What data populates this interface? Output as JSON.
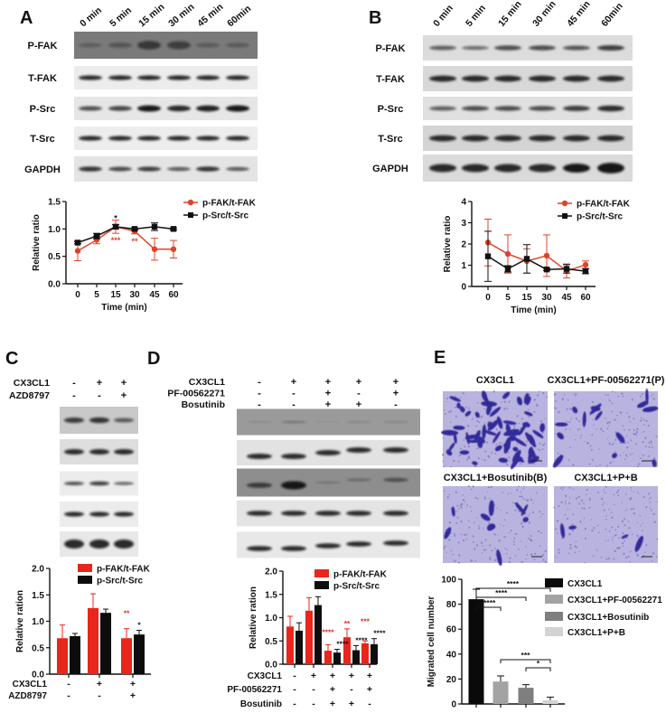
{
  "panel_a": {
    "label": "A",
    "lanes": [
      "0 min",
      "5 min",
      "15 min",
      "30 min",
      "45 min",
      "60min"
    ],
    "rows": [
      "P-FAK",
      "T-FAK",
      "P-Src",
      "T-Src",
      "GAPDH"
    ]
  },
  "panel_b": {
    "label": "B",
    "lanes": [
      "0 min",
      "5 min",
      "15 min",
      "30 min",
      "45 min",
      "60min"
    ],
    "rows": [
      "P-FAK",
      "T-FAK",
      "P-Src",
      "T-Src",
      "GAPDH"
    ]
  },
  "panel_c": {
    "label": "C",
    "conditions": [
      {
        "label": "CX3CL1",
        "values": [
          "-",
          "+",
          "+"
        ]
      },
      {
        "label": "AZD8797",
        "values": [
          "-",
          "-",
          "+"
        ]
      }
    ]
  },
  "panel_d": {
    "label": "D",
    "conditions": [
      {
        "label": "CX3CL1",
        "values": [
          "-",
          "+",
          "+",
          "+",
          "+"
        ]
      },
      {
        "label": "PF-00562271",
        "values": [
          "-",
          "-",
          "+",
          "-",
          "+"
        ]
      },
      {
        "label": "Bosutinib",
        "values": [
          "-",
          "-",
          "+",
          "+",
          "-"
        ]
      }
    ]
  },
  "panel_e": {
    "label": "E",
    "images": [
      "CX3CL1",
      "CX3CL1+PF-00562271(P)",
      "CX3CL1+Bosutinib(B)",
      "CX3CL1+P+B"
    ]
  },
  "chart_data": [
    {
      "type": "line",
      "categories": [
        "0",
        "5",
        "15",
        "30",
        "45",
        "60"
      ],
      "xlabel": "Time (min)",
      "ylabel": "Relative ratio",
      "ylim": [
        0,
        1.5
      ],
      "yticks": [
        "0.0",
        "0.5",
        "1.0",
        "1.5"
      ],
      "grid": false,
      "legend": "top-right",
      "series": [
        {
          "name": "p-FAK/t-FAK",
          "color": "#e0432b",
          "marker": "circle",
          "values": [
            0.6,
            0.8,
            1.04,
            0.96,
            0.63,
            0.63
          ],
          "errors": [
            0.18,
            0.07,
            0.12,
            0.05,
            0.2,
            0.16
          ],
          "annotations": [
            "",
            "",
            "***",
            "**",
            "",
            ""
          ]
        },
        {
          "name": "p-Src/t-Src",
          "color": "#111111",
          "marker": "square",
          "values": [
            0.75,
            0.87,
            1.04,
            1.0,
            1.04,
            1.0
          ],
          "errors": [
            0.02,
            0.05,
            0.04,
            0.02,
            0.07,
            0.02
          ],
          "annotations": [
            "",
            "",
            "*",
            "",
            "",
            ""
          ]
        }
      ]
    },
    {
      "type": "line",
      "categories": [
        "0",
        "5",
        "15",
        "30",
        "45",
        "60"
      ],
      "xlabel": "Time (min)",
      "ylabel": "Relative ratio",
      "ylim": [
        0,
        4
      ],
      "yticks": [
        "0",
        "1",
        "2",
        "3",
        "4"
      ],
      "grid": false,
      "legend": "top-right",
      "series": [
        {
          "name": "p-FAK/t-FAK",
          "color": "#e0432b",
          "marker": "circle",
          "values": [
            2.07,
            1.53,
            1.2,
            1.45,
            0.73,
            1.02
          ],
          "errors": [
            1.1,
            0.9,
            0.57,
            0.98,
            0.33,
            0.18
          ],
          "annotations": [
            "",
            "",
            "",
            "",
            "",
            ""
          ]
        },
        {
          "name": "p-Src/t-Src",
          "color": "#111111",
          "marker": "square",
          "values": [
            1.42,
            0.83,
            1.3,
            0.8,
            0.83,
            0.72
          ],
          "errors": [
            1.18,
            0.15,
            0.67,
            0.05,
            0.2,
            0.12
          ],
          "annotations": [
            "",
            "",
            "",
            "",
            "",
            ""
          ]
        }
      ]
    },
    {
      "type": "bar",
      "ylabel": "Relative ration",
      "ylim": [
        0,
        2
      ],
      "yticks": [
        "0.0",
        "0.5",
        "1.0",
        "1.5",
        "2.0"
      ],
      "legend": "top-right",
      "conditions": [
        {
          "label": "CX3CL1",
          "values": [
            "-",
            "+",
            "+"
          ]
        },
        {
          "label": "AZD8797",
          "values": [
            "-",
            "-",
            "+"
          ]
        }
      ],
      "series": [
        {
          "name": "p-FAK/t-FAK",
          "color": "#e8261c",
          "values": [
            0.68,
            1.25,
            0.68
          ],
          "errors": [
            0.25,
            0.27,
            0.18
          ],
          "annotations": [
            "",
            "",
            "**"
          ]
        },
        {
          "name": "p-Src/t-Src",
          "color": "#0d0d0d",
          "values": [
            0.72,
            1.16,
            0.75
          ],
          "errors": [
            0.05,
            0.07,
            0.08
          ],
          "annotations": [
            "",
            "",
            "*"
          ]
        }
      ]
    },
    {
      "type": "bar",
      "ylabel": "Relative ration",
      "ylim": [
        0,
        2
      ],
      "yticks": [
        "0.0",
        "0.5",
        "1.0",
        "1.5",
        "2.0"
      ],
      "legend": "top-right",
      "conditions": [
        {
          "label": "CX3CL1",
          "values": [
            "-",
            "+",
            "+",
            "+",
            "+"
          ]
        },
        {
          "label": "PF-00562271",
          "values": [
            "-",
            "-",
            "+",
            "-",
            "+"
          ]
        },
        {
          "label": "Bosutinib",
          "values": [
            "-",
            "-",
            "+",
            "+",
            "-"
          ]
        }
      ],
      "series": [
        {
          "name": "p-FAK/t-FAK",
          "color": "#e8261c",
          "values": [
            0.81,
            1.15,
            0.29,
            0.58,
            0.45
          ],
          "errors": [
            0.22,
            0.28,
            0.13,
            0.18,
            0.05
          ],
          "annotations": [
            "",
            "",
            "****",
            "**",
            "***"
          ]
        },
        {
          "name": "p-Src/t-Src",
          "color": "#0d0d0d",
          "values": [
            0.72,
            1.27,
            0.25,
            0.3,
            0.43
          ],
          "errors": [
            0.17,
            0.18,
            0.07,
            0.1,
            0.12
          ],
          "annotations": [
            "",
            "",
            "****",
            "****",
            "****"
          ]
        }
      ]
    },
    {
      "type": "bar",
      "categories": [
        "CX3CL1",
        "CX3CL1+PF-00562271",
        "CX3CL1+Bosutinib",
        "CX3CL1+P+B"
      ],
      "values": [
        84,
        18,
        13,
        3
      ],
      "errors": [
        8,
        4.5,
        2.5,
        2.5
      ],
      "colors": [
        "#0a0a0a",
        "#a3a3a3",
        "#7f7f7f",
        "#d3d3d3"
      ],
      "ylabel": "Migrated cell number",
      "ylim": [
        0,
        100
      ],
      "yticks": [
        "0",
        "20",
        "40",
        "60",
        "80",
        "100"
      ],
      "legend": "right",
      "comparisons": [
        {
          "groups": [
            0,
            1
          ],
          "label": "****"
        },
        {
          "groups": [
            0,
            2
          ],
          "label": "****"
        },
        {
          "groups": [
            0,
            3
          ],
          "label": "****"
        },
        {
          "groups": [
            1,
            3
          ],
          "label": "***"
        },
        {
          "groups": [
            2,
            3
          ],
          "label": "*"
        }
      ]
    }
  ]
}
